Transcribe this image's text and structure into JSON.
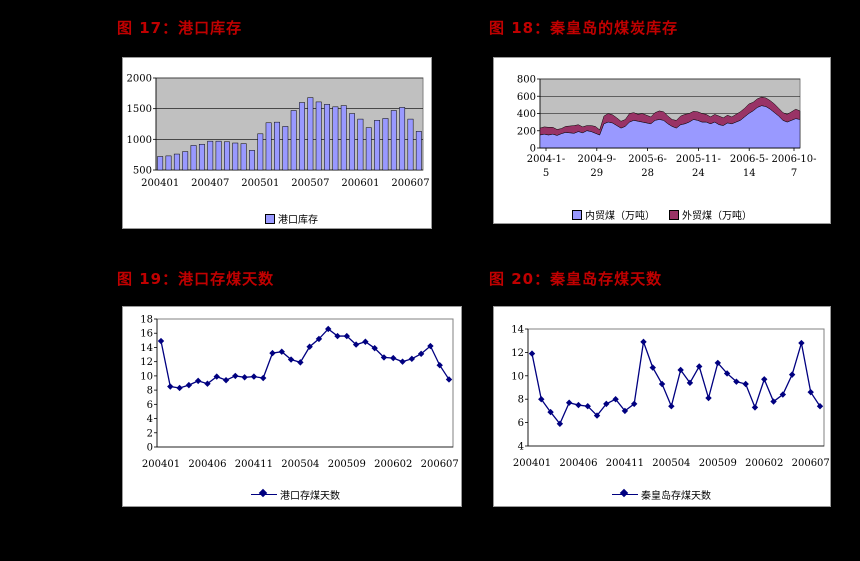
{
  "titles": {
    "fig17": "图 17：港口库存",
    "fig18": "图 18：秦皇岛的煤炭库存",
    "fig19": "图 19：港口存煤天数",
    "fig20": "图 20：秦皇岛存煤天数"
  },
  "chart_data": [
    {
      "id": "port_inventory",
      "type": "bar",
      "title": "图 17：港口库存",
      "categories": [
        "200401",
        "200402",
        "200403",
        "200404",
        "200405",
        "200406",
        "200407",
        "200408",
        "200409",
        "200410",
        "200411",
        "200412",
        "200501",
        "200502",
        "200503",
        "200504",
        "200505",
        "200506",
        "200507",
        "200508",
        "200509",
        "200510",
        "200511",
        "200512",
        "200601",
        "200602",
        "200603",
        "200604",
        "200605",
        "200606",
        "200607",
        "200608"
      ],
      "series": [
        {
          "name": "港口库存",
          "values": [
            720,
            730,
            760,
            800,
            900,
            920,
            970,
            970,
            960,
            940,
            930,
            820,
            1090,
            1270,
            1280,
            1210,
            1470,
            1600,
            1680,
            1610,
            1570,
            1530,
            1550,
            1420,
            1330,
            1190,
            1310,
            1340,
            1470,
            1520,
            1330,
            1130
          ]
        }
      ],
      "x_tick_labels": [
        "200401",
        "200407",
        "200501",
        "200507",
        "200601",
        "200607"
      ],
      "ylim": [
        500,
        2000
      ],
      "y_ticks": [
        500,
        1000,
        1500,
        2000
      ],
      "legend": "bottom",
      "color": "#9999ff"
    },
    {
      "id": "qhd_inventory",
      "type": "area",
      "title": "图 18：秦皇岛的煤炭库存",
      "x_tick_labels": [
        "2004-1-5",
        "2004-9-29",
        "2005-6-28",
        "2005-11-24",
        "2006-5-14",
        "2006-10-7"
      ],
      "ylim": [
        0,
        800
      ],
      "y_ticks": [
        0,
        200,
        400,
        600,
        800
      ],
      "legend": "bottom",
      "series": [
        {
          "name": "内贸煤（万吨）",
          "color": "#9999ff",
          "values": [
            150,
            160,
            150,
            160,
            145,
            165,
            180,
            175,
            170,
            190,
            175,
            200,
            190,
            170,
            150,
            280,
            300,
            290,
            260,
            230,
            250,
            300,
            320,
            310,
            300,
            290,
            280,
            320,
            330,
            320,
            280,
            250,
            230,
            270,
            280,
            300,
            330,
            320,
            300,
            300,
            280,
            300,
            270,
            260,
            290,
            280,
            300,
            320,
            360,
            400,
            430,
            470,
            490,
            480,
            450,
            410,
            370,
            320,
            300,
            320,
            340,
            330
          ]
        },
        {
          "name": "外贸煤（万吨）",
          "color": "#993366",
          "values": [
            80,
            85,
            90,
            80,
            70,
            60,
            70,
            80,
            90,
            80,
            70,
            60,
            70,
            80,
            60,
            90,
            100,
            95,
            90,
            80,
            80,
            100,
            90,
            80,
            100,
            90,
            80,
            90,
            100,
            100,
            90,
            80,
            90,
            100,
            110,
            100,
            95,
            100,
            100,
            90,
            80,
            90,
            100,
            90,
            90,
            80,
            90,
            100,
            100,
            110,
            100,
            100,
            100,
            100,
            100,
            100,
            90,
            90,
            90,
            100,
            110,
            100
          ]
        }
      ]
    },
    {
      "id": "port_days",
      "type": "line",
      "title": "图 19：港口存煤天数",
      "categories": [
        "200401",
        "200402",
        "200403",
        "200404",
        "200405",
        "200406",
        "200407",
        "200408",
        "200409",
        "200410",
        "200411",
        "200412",
        "200501",
        "200502",
        "200503",
        "200504",
        "200505",
        "200506",
        "200507",
        "200508",
        "200509",
        "200510",
        "200511",
        "200512",
        "200601",
        "200602",
        "200603",
        "200604",
        "200605",
        "200606",
        "200607",
        "200608"
      ],
      "series": [
        {
          "name": "港口存煤天数",
          "values": [
            14.9,
            8.5,
            8.3,
            8.7,
            9.3,
            8.9,
            9.9,
            9.4,
            10.0,
            9.8,
            9.9,
            9.7,
            13.2,
            13.4,
            12.3,
            11.9,
            14.1,
            15.2,
            16.6,
            15.6,
            15.6,
            14.4,
            14.8,
            13.9,
            12.6,
            12.5,
            12.0,
            12.4,
            13.1,
            14.2,
            11.5,
            9.5
          ]
        }
      ],
      "x_tick_labels": [
        "200401",
        "200406",
        "200411",
        "200504",
        "200509",
        "200602",
        "200607"
      ],
      "ylim": [
        0,
        18
      ],
      "y_ticks": [
        0,
        2,
        4,
        6,
        8,
        10,
        12,
        14,
        16,
        18
      ],
      "legend": "bottom",
      "color": "#000080"
    },
    {
      "id": "qhd_days",
      "type": "line",
      "title": "图 20：秦皇岛存煤天数",
      "categories": [
        "200401",
        "200402",
        "200403",
        "200404",
        "200405",
        "200406",
        "200407",
        "200408",
        "200409",
        "200410",
        "200411",
        "200412",
        "200501",
        "200502",
        "200503",
        "200504",
        "200505",
        "200506",
        "200507",
        "200508",
        "200509",
        "200510",
        "200511",
        "200512",
        "200601",
        "200602",
        "200603",
        "200604",
        "200605",
        "200606",
        "200607",
        "200608"
      ],
      "series": [
        {
          "name": "秦皇岛存煤天数",
          "values": [
            11.9,
            8.0,
            6.9,
            5.9,
            7.7,
            7.5,
            7.4,
            6.6,
            7.6,
            8.0,
            7.0,
            7.6,
            12.9,
            10.7,
            9.3,
            7.4,
            10.5,
            9.4,
            10.8,
            8.1,
            11.1,
            10.2,
            9.5,
            9.3,
            7.3,
            9.7,
            7.8,
            8.4,
            10.1,
            12.8,
            8.6,
            7.4
          ]
        }
      ],
      "x_tick_labels": [
        "200401",
        "200406",
        "200411",
        "200504",
        "200509",
        "200602",
        "200607"
      ],
      "ylim": [
        4,
        14
      ],
      "y_ticks": [
        4,
        6,
        8,
        10,
        12,
        14
      ],
      "legend": "bottom",
      "color": "#000080"
    }
  ]
}
